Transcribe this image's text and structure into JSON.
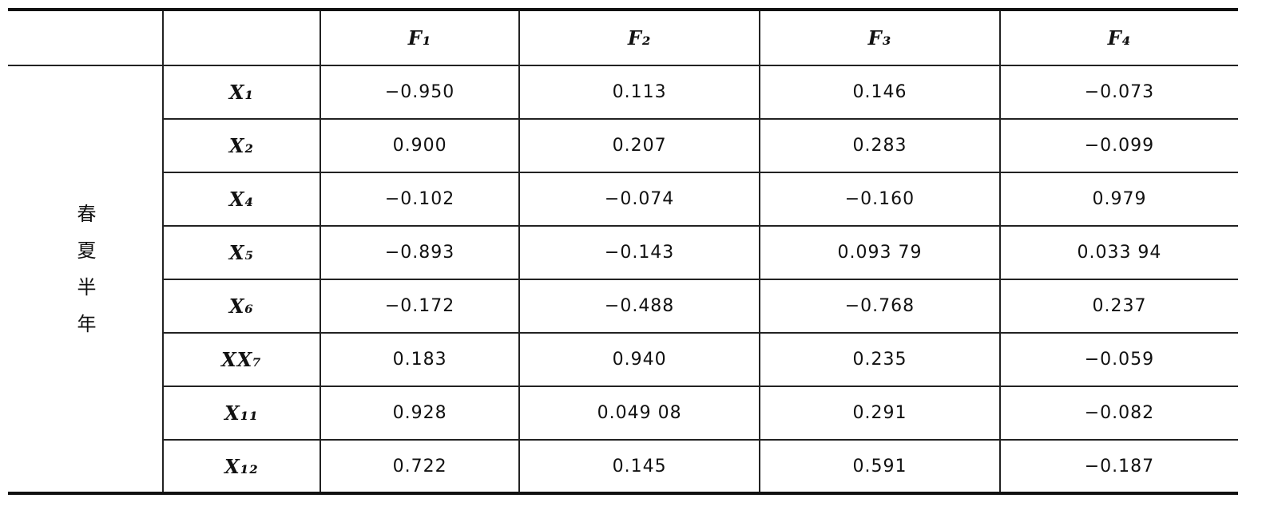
{
  "table": {
    "header": [
      "F₁",
      "F₂",
      "F₃",
      "F₄"
    ],
    "group": "春夏半年",
    "rows": [
      [
        "X₁",
        "−0.950",
        "0.113",
        "0.146",
        "−0.073"
      ],
      [
        "X₂",
        "0.900",
        "0.207",
        "0.283",
        "−0.099"
      ],
      [
        "X₄",
        "−0.102",
        "−0.074",
        "−0.160",
        "0.979"
      ],
      [
        "X₅",
        "−0.893",
        "−0.143",
        "0.093 79",
        "0.033 94"
      ],
      [
        "X₆",
        "−0.172",
        "−0.488",
        "−0.768",
        "0.237"
      ],
      [
        "XX₇",
        "0.183",
        "0.940",
        "0.235",
        "−0.059"
      ],
      [
        "X₁₁",
        "0.928",
        "0.049 08",
        "0.291",
        "−0.082"
      ],
      [
        "X₁₂",
        "0.722",
        "0.145",
        "0.591",
        "−0.187"
      ]
    ]
  }
}
